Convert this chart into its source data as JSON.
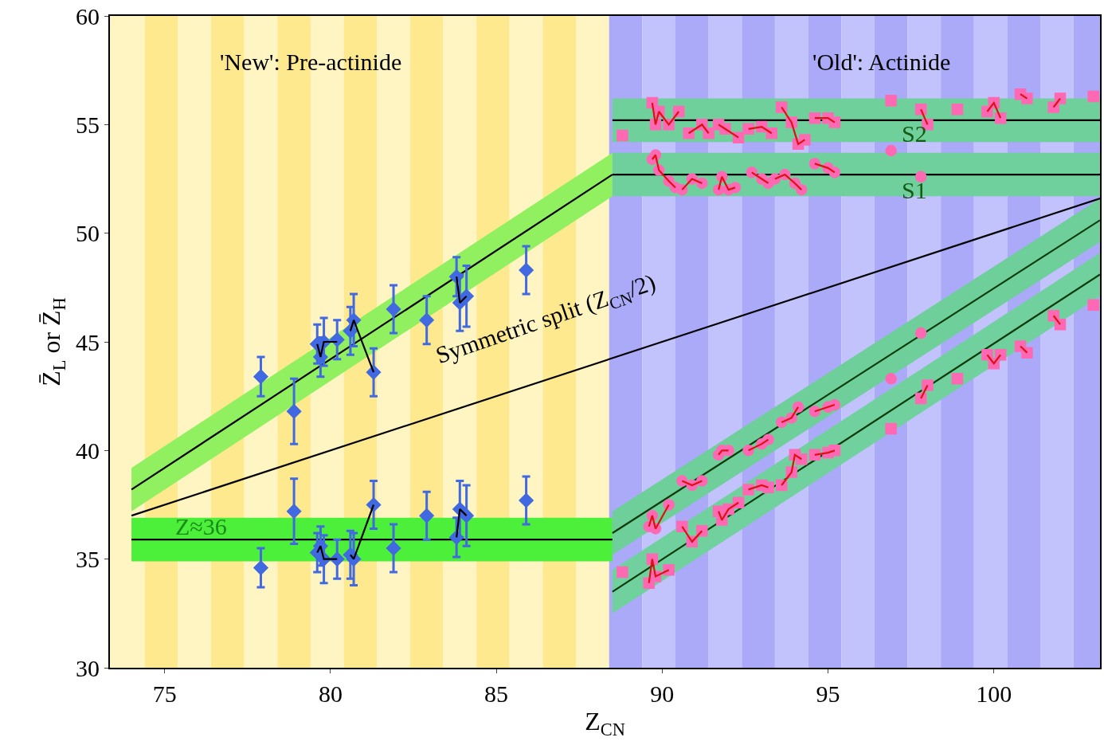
{
  "chart_data": {
    "type": "scatter",
    "xlabel": "Z$_{CN}$",
    "ylabel": "Z̄$_{L}$ or Z̄$_{H}$",
    "xlim": [
      73.35,
      103.2
    ],
    "ylim": [
      30,
      60
    ],
    "xticks": [
      75,
      80,
      85,
      90,
      95,
      100
    ],
    "yticks": [
      30,
      35,
      40,
      45,
      50,
      55,
      60
    ],
    "bands": [
      {
        "axis": "x",
        "from": 73.35,
        "to": 74.4,
        "color": "#fff5c2"
      },
      {
        "axis": "x",
        "from": 74.4,
        "to": 75.4,
        "color": "#ffe98e"
      },
      {
        "axis": "x",
        "from": 75.4,
        "to": 76.4,
        "color": "#fff5c2"
      },
      {
        "axis": "x",
        "from": 76.4,
        "to": 77.4,
        "color": "#ffe98e"
      },
      {
        "axis": "x",
        "from": 77.4,
        "to": 78.4,
        "color": "#fff5c2"
      },
      {
        "axis": "x",
        "from": 78.4,
        "to": 79.4,
        "color": "#ffe98e"
      },
      {
        "axis": "x",
        "from": 79.4,
        "to": 80.4,
        "color": "#fff5c2"
      },
      {
        "axis": "x",
        "from": 80.4,
        "to": 81.4,
        "color": "#ffe98e"
      },
      {
        "axis": "x",
        "from": 81.4,
        "to": 82.4,
        "color": "#fff5c2"
      },
      {
        "axis": "x",
        "from": 82.4,
        "to": 83.4,
        "color": "#ffe98e"
      },
      {
        "axis": "x",
        "from": 83.4,
        "to": 84.4,
        "color": "#fff5c2"
      },
      {
        "axis": "x",
        "from": 84.4,
        "to": 85.4,
        "color": "#ffe98e"
      },
      {
        "axis": "x",
        "from": 85.4,
        "to": 86.4,
        "color": "#fff5c2"
      },
      {
        "axis": "x",
        "from": 86.4,
        "to": 87.4,
        "color": "#ffe98e"
      },
      {
        "axis": "x",
        "from": 87.4,
        "to": 88.4,
        "color": "#fff5c2"
      },
      {
        "axis": "x",
        "from": 88.4,
        "to": 89.4,
        "color": "#aaaaf8"
      },
      {
        "axis": "x",
        "from": 89.4,
        "to": 90.4,
        "color": "#c2c2fc"
      },
      {
        "axis": "x",
        "from": 90.4,
        "to": 91.4,
        "color": "#aaaaf8"
      },
      {
        "axis": "x",
        "from": 91.4,
        "to": 92.4,
        "color": "#c2c2fc"
      },
      {
        "axis": "x",
        "from": 92.4,
        "to": 93.4,
        "color": "#aaaaf8"
      },
      {
        "axis": "x",
        "from": 93.4,
        "to": 94.4,
        "color": "#c2c2fc"
      },
      {
        "axis": "x",
        "from": 94.4,
        "to": 95.4,
        "color": "#aaaaf8"
      },
      {
        "axis": "x",
        "from": 95.4,
        "to": 96.4,
        "color": "#c2c2fc"
      },
      {
        "axis": "x",
        "from": 96.4,
        "to": 97.4,
        "color": "#aaaaf8"
      },
      {
        "axis": "x",
        "from": 97.4,
        "to": 98.4,
        "color": "#c2c2fc"
      },
      {
        "axis": "x",
        "from": 98.4,
        "to": 99.4,
        "color": "#aaaaf8"
      },
      {
        "axis": "x",
        "from": 99.4,
        "to": 100.4,
        "color": "#c2c2fc"
      },
      {
        "axis": "x",
        "from": 100.4,
        "to": 101.4,
        "color": "#aaaaf8"
      },
      {
        "axis": "x",
        "from": 101.4,
        "to": 102.4,
        "color": "#c2c2fc"
      },
      {
        "axis": "x",
        "from": 102.4,
        "to": 103.2,
        "color": "#aaaaf8"
      }
    ],
    "series": [
      {
        "type": "line",
        "color": "#000000",
        "x": [
          74,
          88.5
        ],
        "values": [
          38.2,
          52.7
        ],
        "lower": [
          37.2,
          51.7
        ],
        "upper": [
          39.2,
          53.7
        ]
      },
      {
        "type": "line",
        "color": "#000000",
        "x": [
          74,
          88.5
        ],
        "values": [
          35.9,
          35.9
        ],
        "lower": [
          34.9,
          34.9
        ],
        "upper": [
          36.9,
          36.9
        ]
      },
      {
        "type": "line",
        "color": "#000000",
        "x": [
          88.5,
          103.2
        ],
        "values": [
          55.2,
          55.2
        ],
        "lower": [
          54.2,
          54.2
        ],
        "upper": [
          56.2,
          56.2
        ]
      },
      {
        "type": "line",
        "color": "#000000",
        "x": [
          88.5,
          103.2
        ],
        "values": [
          52.7,
          52.7
        ],
        "lower": [
          51.7,
          51.7
        ],
        "upper": [
          53.7,
          53.7
        ]
      },
      {
        "type": "line",
        "color": "#0a3a0a",
        "x": [
          88.5,
          103.2
        ],
        "values": [
          36.2,
          50.6
        ],
        "lower": [
          35.2,
          49.6
        ],
        "upper": [
          37.2,
          51.6
        ]
      },
      {
        "type": "line",
        "color": "#0a3a0a",
        "x": [
          88.5,
          103.2
        ],
        "values": [
          33.5,
          48.1
        ],
        "lower": [
          32.5,
          47.1
        ],
        "upper": [
          34.5,
          49.1
        ]
      },
      {
        "type": "line",
        "color": "#000000",
        "x": [
          74,
          103.2
        ],
        "values": [
          37,
          51.6
        ]
      },
      {
        "color": "#4169e1",
        "marker": "diamond",
        "x": [
          77.9,
          78.9,
          79.6,
          79.7,
          79.8,
          80.2,
          80.6,
          80.7,
          81.3,
          81.9,
          82.9,
          83.8,
          83.9,
          84.1,
          85.9
        ],
        "values": [
          43.4,
          41.8,
          44.9,
          44.3,
          45.0,
          45.1,
          45.5,
          46.0,
          43.6,
          46.5,
          46.0,
          48.0,
          46.8,
          47.1,
          48.3
        ],
        "errors": [
          0.9,
          1.5,
          0.9,
          0.9,
          1.1,
          0.9,
          1.1,
          1.2,
          1.1,
          1.1,
          1.1,
          0.9,
          1.3,
          1.4,
          1.1
        ]
      },
      {
        "color": "#4169e1",
        "marker": "diamond",
        "x": [
          77.9,
          78.9,
          79.6,
          79.7,
          79.8,
          80.2,
          80.6,
          80.7,
          81.3,
          81.9,
          82.9,
          83.8,
          83.9,
          84.1,
          85.9
        ],
        "values": [
          34.6,
          37.2,
          35.3,
          35.6,
          35.0,
          35.0,
          35.2,
          35.0,
          37.5,
          35.5,
          37.0,
          36.0,
          37.3,
          37.0,
          37.7
        ],
        "errors": [
          0.9,
          1.5,
          0.9,
          0.9,
          1.1,
          0.9,
          1.1,
          1.2,
          1.1,
          1.1,
          1.1,
          0.9,
          1.3,
          1.4,
          1.1
        ]
      },
      {
        "type": "line",
        "color": "#000000",
        "x": [
          79.6,
          79.7,
          79.8,
          80.2,
          null,
          80.6,
          80.7,
          81.3,
          null,
          83.8,
          83.9,
          84.1
        ],
        "values": [
          44.9,
          44.3,
          45.0,
          45.0,
          null,
          45.5,
          46.0,
          43.6,
          null,
          48.0,
          46.8,
          47.1
        ]
      },
      {
        "type": "line",
        "color": "#000000",
        "x": [
          79.6,
          79.7,
          79.8,
          80.2,
          null,
          80.6,
          80.7,
          81.3,
          null,
          83.8,
          83.9,
          84.1
        ],
        "values": [
          35.3,
          35.6,
          35.0,
          35.0,
          null,
          35.2,
          35.0,
          37.5,
          null,
          36.0,
          37.3,
          37.0
        ]
      },
      {
        "color": "#ff69b4",
        "marker": "square",
        "x": [
          88.8,
          89.7,
          89.8,
          89.9,
          90.2,
          90.5,
          90.8,
          91.2,
          91.4,
          91.7,
          91.9,
          92.3,
          92.6,
          93.0,
          93.3,
          93.6,
          93.9,
          94.1,
          94.3,
          94.6,
          95.0,
          95.2,
          96.9,
          97.8,
          98.0,
          98.9,
          99.8,
          100.0,
          100.2,
          100.8,
          101.0,
          101.8,
          102.0,
          103.0
        ],
        "values": [
          54.5,
          56.0,
          55.0,
          55.6,
          55.0,
          55.6,
          54.6,
          55.0,
          54.6,
          55.0,
          54.8,
          54.4,
          54.8,
          54.9,
          54.6,
          55.8,
          55.1,
          54.1,
          54.3,
          55.3,
          55.3,
          55.1,
          56.1,
          55.7,
          55.0,
          55.7,
          55.6,
          56.0,
          55.3,
          56.4,
          56.2,
          55.8,
          56.2,
          56.3
        ]
      },
      {
        "color": "#ff69b4",
        "marker": "circle",
        "x": [
          89.7,
          89.8,
          89.9,
          90.2,
          90.4,
          90.6,
          90.9,
          91.2,
          91.7,
          91.8,
          92.0,
          92.2,
          92.7,
          93.0,
          93.2,
          93.4,
          93.7,
          94.0,
          94.2,
          94.6,
          95.0,
          95.2,
          96.9,
          97.8
        ],
        "values": [
          53.4,
          53.6,
          52.9,
          52.4,
          52.1,
          52.0,
          52.5,
          52.3,
          52.0,
          52.6,
          52.0,
          52.1,
          52.8,
          52.5,
          52.3,
          52.5,
          52.7,
          52.3,
          52.0,
          53.2,
          53.0,
          52.8,
          53.8,
          52.6
        ]
      },
      {
        "color": "#ff69b4",
        "marker": "circle",
        "x": [
          89.6,
          89.7,
          89.8,
          90.2,
          90.6,
          90.9,
          91.2,
          91.7,
          91.8,
          92.0,
          92.6,
          93.0,
          93.2,
          93.6,
          93.9,
          94.1,
          94.6,
          95.0,
          95.2,
          96.9,
          97.8
        ],
        "values": [
          36.5,
          37.0,
          36.4,
          37.5,
          38.6,
          38.4,
          38.6,
          39.8,
          40.0,
          40.0,
          40.0,
          40.3,
          40.5,
          41.3,
          41.5,
          42.0,
          41.8,
          42.0,
          42.1,
          43.3,
          45.4
        ]
      },
      {
        "color": "#ff69b4",
        "marker": "square",
        "x": [
          88.8,
          89.6,
          89.7,
          89.8,
          90.2,
          90.6,
          90.9,
          91.2,
          91.7,
          91.8,
          92.0,
          92.3,
          92.6,
          93.0,
          93.2,
          93.6,
          93.9,
          94.0,
          94.2,
          94.6,
          95.0,
          95.2,
          96.9,
          97.8,
          98.0,
          98.9,
          99.8,
          100.0,
          100.2,
          100.8,
          101.0,
          101.8,
          102.0,
          103.0
        ],
        "values": [
          34.4,
          33.9,
          35.0,
          34.2,
          34.5,
          36.5,
          35.8,
          36.3,
          37.2,
          36.8,
          37.3,
          37.6,
          38.2,
          38.4,
          38.3,
          38.4,
          39.0,
          39.8,
          39.6,
          39.8,
          39.9,
          40.0,
          41.0,
          42.4,
          43.0,
          43.3,
          44.4,
          44.0,
          44.4,
          44.8,
          44.5,
          46.2,
          45.8,
          46.7
        ]
      },
      {
        "type": "line",
        "color": "#e01010",
        "x": [
          89.7,
          89.8,
          89.9,
          90.2,
          90.5,
          null,
          90.8,
          91.2,
          91.4,
          null,
          91.7,
          91.9,
          92.3,
          null,
          92.6,
          93.0,
          93.3,
          null,
          93.6,
          93.9,
          94.1,
          94.3,
          null,
          94.6,
          95.0,
          95.2,
          null,
          97.8,
          98.0,
          null,
          99.8,
          100.0,
          100.2,
          null,
          100.8,
          101.0,
          null,
          101.8,
          102.0
        ],
        "values": [
          56.0,
          55.0,
          55.6,
          55.0,
          55.6,
          null,
          54.6,
          55.0,
          54.6,
          null,
          55.0,
          54.8,
          54.4,
          null,
          54.8,
          54.9,
          54.6,
          null,
          55.8,
          55.1,
          54.1,
          54.3,
          null,
          55.3,
          55.3,
          55.1,
          null,
          55.7,
          55.0,
          null,
          55.6,
          56.0,
          55.3,
          null,
          56.4,
          56.2,
          null,
          55.8,
          56.2
        ]
      },
      {
        "type": "line",
        "color": "#e01010",
        "x": [
          89.7,
          89.8,
          89.9,
          90.2,
          90.4,
          null,
          90.6,
          90.9,
          91.2,
          null,
          91.7,
          91.8,
          92.0,
          92.2,
          null,
          92.7,
          93.0,
          93.2,
          null,
          93.4,
          93.7,
          94.0,
          94.2,
          null,
          94.6,
          95.0,
          95.2
        ],
        "values": [
          53.4,
          53.6,
          52.9,
          52.4,
          52.1,
          null,
          52.0,
          52.5,
          52.3,
          null,
          52.0,
          52.6,
          52.0,
          52.1,
          null,
          52.8,
          52.5,
          52.3,
          null,
          52.5,
          52.7,
          52.3,
          52.0,
          null,
          53.2,
          53.0,
          52.8
        ]
      },
      {
        "type": "line",
        "color": "#e01010",
        "x": [
          89.6,
          89.7,
          89.8,
          90.2,
          null,
          90.6,
          90.9,
          91.2,
          null,
          91.7,
          91.8,
          92.0,
          null,
          92.6,
          93.0,
          93.2,
          null,
          93.6,
          93.9,
          94.1,
          null,
          94.6,
          95.0,
          95.2
        ],
        "values": [
          36.5,
          37.0,
          36.4,
          37.5,
          null,
          38.6,
          38.4,
          38.6,
          null,
          39.8,
          40.0,
          40.0,
          null,
          40.0,
          40.3,
          40.5,
          null,
          41.3,
          41.5,
          42.0,
          null,
          41.8,
          42.0,
          42.1
        ]
      },
      {
        "type": "line",
        "color": "#e01010",
        "x": [
          89.6,
          89.7,
          89.8,
          90.2,
          null,
          90.6,
          90.9,
          91.2,
          null,
          91.7,
          91.8,
          92.0,
          92.3,
          null,
          92.6,
          93.0,
          93.2,
          null,
          93.6,
          93.9,
          94.0,
          94.2,
          null,
          94.6,
          95.0,
          95.2,
          null,
          97.8,
          98.0,
          null,
          99.8,
          100.0,
          100.2,
          null,
          100.8,
          101.0,
          null,
          101.8,
          102.0
        ],
        "values": [
          33.9,
          35.0,
          34.2,
          34.5,
          null,
          36.5,
          35.8,
          36.3,
          null,
          37.2,
          36.8,
          37.3,
          37.6,
          null,
          38.2,
          38.4,
          38.3,
          null,
          38.4,
          39.0,
          39.8,
          39.6,
          null,
          39.8,
          39.9,
          40.0,
          null,
          42.4,
          43.0,
          null,
          44.4,
          44.0,
          44.4,
          null,
          44.8,
          44.5,
          null,
          46.2,
          45.8
        ]
      }
    ],
    "annotations": [
      "'New': Pre-actinide",
      "'Old': Actinide",
      "S2",
      "S1",
      "Z≈36",
      {
        "text": "Symmetric split (Z$_{CN}$/2)",
        "x": 86.5,
        "y": 46.0
      }
    ]
  }
}
